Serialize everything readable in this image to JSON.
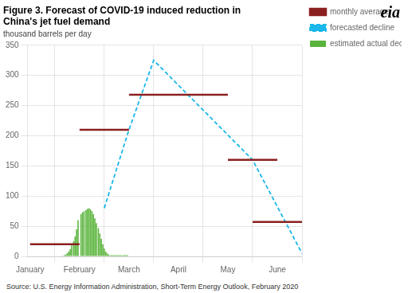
{
  "chart_data": {
    "type": "bar",
    "title": [
      "Figure 3. Forecast of COVID-19 induced reduction in",
      "China's jet fuel demand"
    ],
    "subtitle": "thousand barrels per day",
    "annotations": [
      "Source: U.S. Energy Information Administration, Short-Term Energy Outlook, February 2020",
      "eia"
    ],
    "xlim": [
      -0.05,
      5.5
    ],
    "xticks": [
      {
        "value": 0,
        "label": "January"
      },
      {
        "value": 1,
        "label": "February"
      },
      {
        "value": 2,
        "label": "March"
      },
      {
        "value": 3,
        "label": "April"
      },
      {
        "value": 4,
        "label": "May"
      },
      {
        "value": 5,
        "label": "June"
      }
    ],
    "ylim": [
      0,
      350
    ],
    "yticks": [
      0,
      50,
      100,
      150,
      200,
      250,
      300,
      350
    ],
    "grid": true,
    "legend": "right",
    "series": [
      {
        "name": "estimated actual decline",
        "type": "bar",
        "color": "#5ab43c",
        "x": [
          0.03,
          0.06,
          0.09,
          0.12,
          0.16,
          0.19,
          0.22,
          0.25,
          0.28,
          0.31,
          0.34,
          0.37,
          0.4,
          0.44,
          0.47,
          0.5,
          0.53,
          0.56,
          0.59,
          0.62,
          0.65,
          0.69,
          0.72,
          0.75,
          0.78,
          0.81,
          0.84,
          0.88,
          0.91,
          0.94,
          0.97,
          1.03,
          1.06,
          1.09,
          1.13,
          1.16,
          1.19,
          1.22,
          1.25,
          1.28,
          1.31,
          1.34,
          1.38,
          1.41,
          1.44,
          1.47,
          1.5,
          1.53,
          1.56,
          1.59,
          1.63,
          1.66,
          1.69,
          1.72,
          1.75,
          1.78,
          1.81,
          1.84,
          1.88,
          1.91,
          1.94,
          1.97
        ],
        "values": [
          0.5,
          0.5,
          0.5,
          0.5,
          0.5,
          0.5,
          0.5,
          0.5,
          0.5,
          0.5,
          0.5,
          0.5,
          0.5,
          0.5,
          0.5,
          0.5,
          0.5,
          0.5,
          0.5,
          0.5,
          1,
          2,
          3,
          5,
          8,
          12,
          18,
          25,
          33,
          45,
          60,
          70,
          73,
          75,
          77,
          79,
          80,
          78,
          75,
          70,
          63,
          55,
          47,
          38,
          29,
          20,
          13,
          8,
          5,
          3,
          2,
          2,
          2,
          2,
          2,
          2,
          2,
          2,
          2,
          2,
          2,
          2
        ]
      },
      {
        "name": "forecasted decline",
        "type": "line",
        "line_style": "dashed",
        "color": "#1ab7ea",
        "x": [
          1.5,
          2.0,
          2.5,
          4.5,
          5.5
        ],
        "values": [
          80,
          210,
          325,
          160,
          5
        ]
      },
      {
        "name": "monthly average",
        "type": "line",
        "line_style": "solid",
        "color": "#8b2020",
        "segments": [
          {
            "x_start": 0.0,
            "x_end": 1.0,
            "y": 20
          },
          {
            "x_start": 1.0,
            "x_end": 2.0,
            "y": 210
          },
          {
            "x_start": 2.0,
            "x_end": 4.0,
            "y": 268
          },
          {
            "x_start": 4.0,
            "x_end": 5.0,
            "y": 160
          },
          {
            "x_start": 4.5,
            "x_end": 5.5,
            "y": 57
          }
        ]
      }
    ]
  }
}
